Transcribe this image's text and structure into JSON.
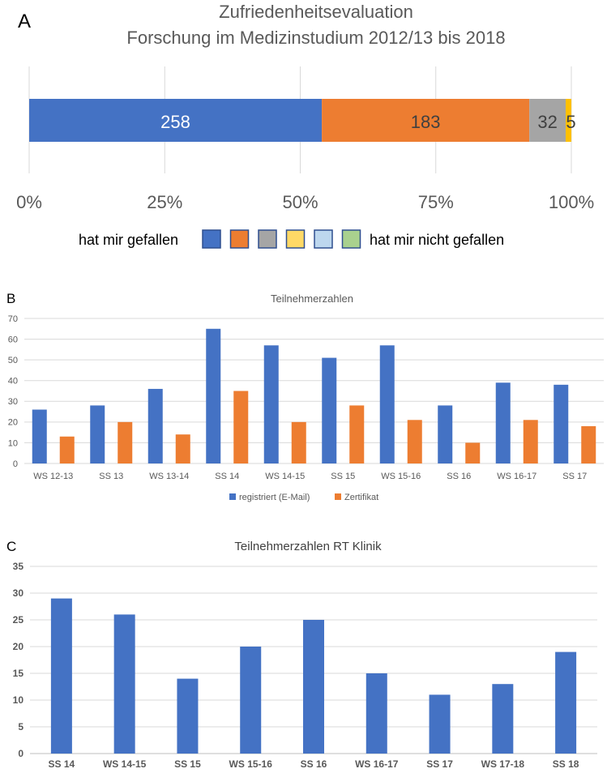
{
  "chart_data": [
    {
      "panel": "A",
      "type": "bar",
      "stacked": true,
      "orientation": "horizontal",
      "title_lines": [
        "Zufriedenheitsevaluation",
        "Forschung im Medizinstudium 2012/13 bis 2018"
      ],
      "segments": [
        {
          "value": 258,
          "label": "258",
          "color": "#4472c4"
        },
        {
          "value": 183,
          "label": "183",
          "color": "#ed7d31"
        },
        {
          "value": 32,
          "label": "32",
          "color": "#a5a5a5"
        },
        {
          "value": 5,
          "label": "5",
          "color": "#ffc000"
        },
        {
          "value": 0,
          "label": "",
          "color": "#bdd7ee"
        },
        {
          "value": 0,
          "label": "",
          "color": "#a9d18e"
        }
      ],
      "x_ticks": [
        "0%",
        "25%",
        "50%",
        "75%",
        "100%"
      ],
      "legend_left": "hat mir gefallen",
      "legend_right": "hat mir nicht gefallen",
      "legend_colors": [
        "#4472c4",
        "#ed7d31",
        "#a5a5a5",
        "#ffd966",
        "#bdd7ee",
        "#a9d18e"
      ]
    },
    {
      "panel": "B",
      "type": "bar",
      "title": "Teilnehmerzahlen",
      "categories": [
        "WS 12-13",
        "SS 13",
        "WS 13-14",
        "SS 14",
        "WS 14-15",
        "SS 15",
        "WS 15-16",
        "SS 16",
        "WS 16-17",
        "SS 17"
      ],
      "series": [
        {
          "name": "registriert (E-Mail)",
          "color": "#4472c4",
          "values": [
            26,
            28,
            36,
            65,
            57,
            51,
            57,
            28,
            39,
            38
          ]
        },
        {
          "name": "Zertifikat",
          "color": "#ed7d31",
          "values": [
            13,
            20,
            14,
            35,
            20,
            28,
            21,
            10,
            21,
            18
          ]
        }
      ],
      "ylim": [
        0,
        70
      ],
      "y_ticks": [
        0,
        10,
        20,
        30,
        40,
        50,
        60,
        70
      ],
      "legend": "bottom",
      "grid": true
    },
    {
      "panel": "C",
      "type": "bar",
      "title": "Teilnehmerzahlen RT Klinik",
      "categories": [
        "SS 14",
        "WS 14-15",
        "SS 15",
        "WS 15-16",
        "SS 16",
        "WS 16-17",
        "SS 17",
        "WS 17-18",
        "SS 18"
      ],
      "series": [
        {
          "color": "#4472c4",
          "values": [
            29,
            26,
            14,
            20,
            25,
            15,
            11,
            13,
            19
          ]
        }
      ],
      "ylim": [
        0,
        35
      ],
      "y_ticks": [
        0,
        5,
        10,
        15,
        20,
        25,
        30,
        35
      ],
      "grid": true
    }
  ]
}
